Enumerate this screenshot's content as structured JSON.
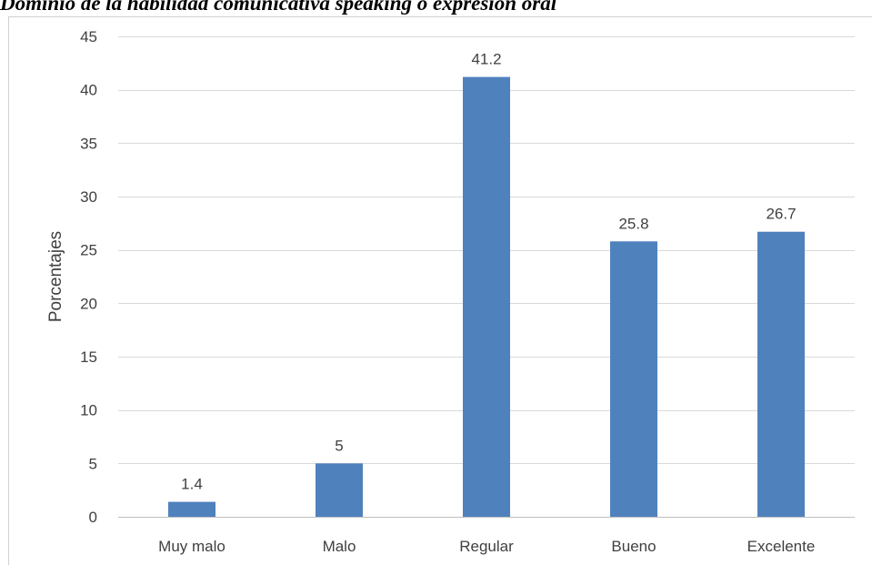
{
  "caption": "Dominio de la habilidad comunicativa speaking o expresión oral",
  "chart_data": {
    "type": "bar",
    "title": "Dominio de la habilidad comunicativa speaking o expresión oral",
    "categories": [
      "Muy malo",
      "Malo",
      "Regular",
      "Bueno",
      "Excelente"
    ],
    "values": [
      1.4,
      5,
      41.2,
      25.8,
      26.7
    ],
    "value_labels": [
      "1.4",
      "5",
      "41.2",
      "25.8",
      "26.7"
    ],
    "xlabel": "",
    "ylabel": "Porcentajes",
    "ylim": [
      0,
      45
    ],
    "yticks": [
      0,
      5,
      10,
      15,
      20,
      25,
      30,
      35,
      40,
      45
    ],
    "grid": true,
    "legend": "none",
    "colors": {
      "bar": "#4f81bd",
      "grid": "#d9d9d9",
      "tick_text": "#404040",
      "label_text": "#404040"
    }
  }
}
